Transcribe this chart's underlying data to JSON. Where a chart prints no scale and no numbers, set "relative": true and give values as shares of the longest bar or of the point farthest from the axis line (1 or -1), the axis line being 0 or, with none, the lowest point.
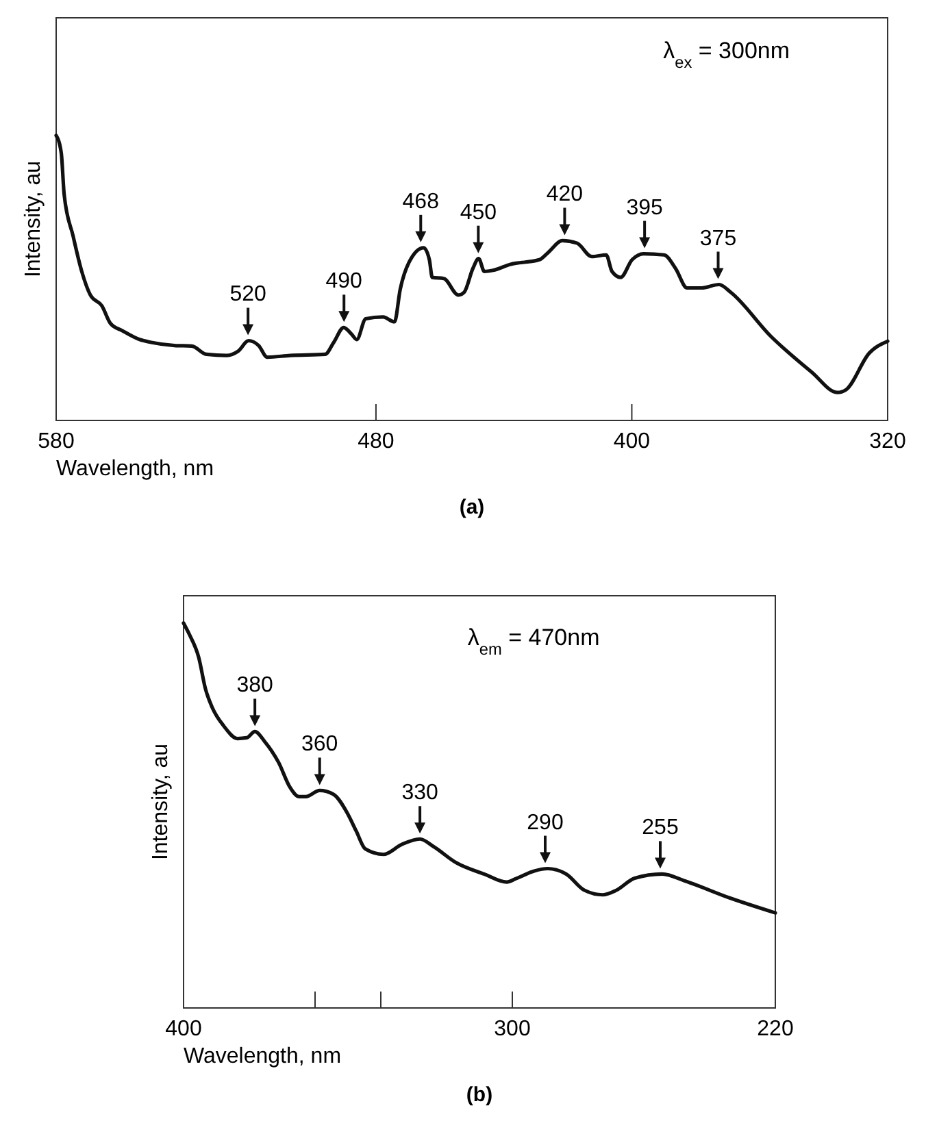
{
  "chart_data": [
    {
      "type": "line",
      "relative": true,
      "title": "(a)",
      "xlabel": "Wavelength, nm",
      "ylabel": "Intensity, au",
      "xlim": [
        580,
        320
      ],
      "xticks": [
        580,
        480,
        400,
        320
      ],
      "color": "#111111",
      "x": [
        580,
        578.4,
        577.5,
        574.7,
        572,
        569.3,
        565.7,
        563,
        559.3,
        553.9,
        550.3,
        543,
        537.6,
        533,
        526.7,
        523.1,
        519.8,
        516.7,
        514,
        506.8,
        495.9,
        493.2,
        490.1,
        487.8,
        486,
        483.2,
        477.8,
        474.2,
        472.4,
        469.7,
        465.1,
        463.3,
        462.4,
        458.8,
        454.2,
        452.4,
        449.7,
        447.9,
        446.1,
        443.4,
        437.9,
        428.9,
        426.2,
        421.7,
        417.1,
        412.5,
        408,
        406.2,
        403.5,
        399.9,
        396.3,
        389.9,
        386.3,
        382.7,
        378.2,
        372.7,
        369.1,
        356.5,
        343.8,
        335.7,
        333,
        325.7,
        320
      ],
      "values": [
        1,
        0.938,
        0.793,
        0.647,
        0.523,
        0.44,
        0.402,
        0.34,
        0.315,
        0.284,
        0.274,
        0.263,
        0.261,
        0.232,
        0.228,
        0.243,
        0.28,
        0.263,
        0.222,
        0.228,
        0.232,
        0.274,
        0.326,
        0.305,
        0.284,
        0.357,
        0.363,
        0.346,
        0.461,
        0.554,
        0.606,
        0.564,
        0.502,
        0.498,
        0.44,
        0.45,
        0.533,
        0.568,
        0.523,
        0.527,
        0.548,
        0.564,
        0.589,
        0.631,
        0.622,
        0.575,
        0.581,
        0.523,
        0.502,
        0.564,
        0.585,
        0.581,
        0.533,
        0.465,
        0.465,
        0.477,
        0.45,
        0.295,
        0.17,
        0.098,
        0.108,
        0.237,
        0.278
      ],
      "annotations": [
        "λ$_{ex}$ = 300nm",
        {
          "text": "520",
          "x": 520,
          "y": 0.28
        },
        {
          "text": "490",
          "x": 490,
          "y": 0.326
        },
        {
          "text": "468",
          "x": 466,
          "y": 0.606
        },
        {
          "text": "450",
          "x": 448,
          "y": 0.568
        },
        {
          "text": "420",
          "x": 421,
          "y": 0.631
        },
        {
          "text": "395",
          "x": 396,
          "y": 0.585
        },
        {
          "text": "375",
          "x": 373,
          "y": 0.477
        }
      ]
    },
    {
      "type": "line",
      "relative": true,
      "title": "(b)",
      "xlabel": "Wavelength, nm",
      "ylabel": "Intensity, au",
      "xlim": [
        400,
        220
      ],
      "xticks": [
        400,
        {
          "value": 360,
          "label": null
        },
        {
          "value": 340,
          "label": null
        },
        300,
        220
      ],
      "color": "#111111",
      "x": [
        400,
        398.2,
        395.4,
        393.3,
        391.3,
        387.8,
        383.6,
        380.8,
        378.3,
        375.3,
        371.1,
        367.6,
        364.9,
        362.8,
        358.6,
        354.4,
        350.3,
        347.5,
        344.7,
        339.2,
        333.6,
        328.1,
        323.9,
        317,
        308.6,
        301.7,
        298.9,
        293.3,
        289.2,
        283.6,
        278.1,
        272.5,
        268.3,
        262.8,
        254.4,
        247.5,
        233.6,
        220
      ],
      "values": [
        1,
        0.97,
        0.911,
        0.828,
        0.781,
        0.733,
        0.7,
        0.702,
        0.718,
        0.692,
        0.638,
        0.573,
        0.549,
        0.549,
        0.565,
        0.555,
        0.508,
        0.46,
        0.413,
        0.399,
        0.425,
        0.439,
        0.419,
        0.377,
        0.348,
        0.327,
        0.336,
        0.356,
        0.362,
        0.348,
        0.306,
        0.294,
        0.306,
        0.337,
        0.348,
        0.33,
        0.285,
        0.247
      ],
      "annotations": [
        "λ$_{em}$ = 470nm",
        {
          "text": "380",
          "x": 378.3,
          "y": 0.718
        },
        {
          "text": "360",
          "x": 358.6,
          "y": 0.565
        },
        {
          "text": "330",
          "x": 328.1,
          "y": 0.439
        },
        {
          "text": "290",
          "x": 290,
          "y": 0.362
        },
        {
          "text": "255",
          "x": 255,
          "y": 0.348
        }
      ]
    }
  ]
}
